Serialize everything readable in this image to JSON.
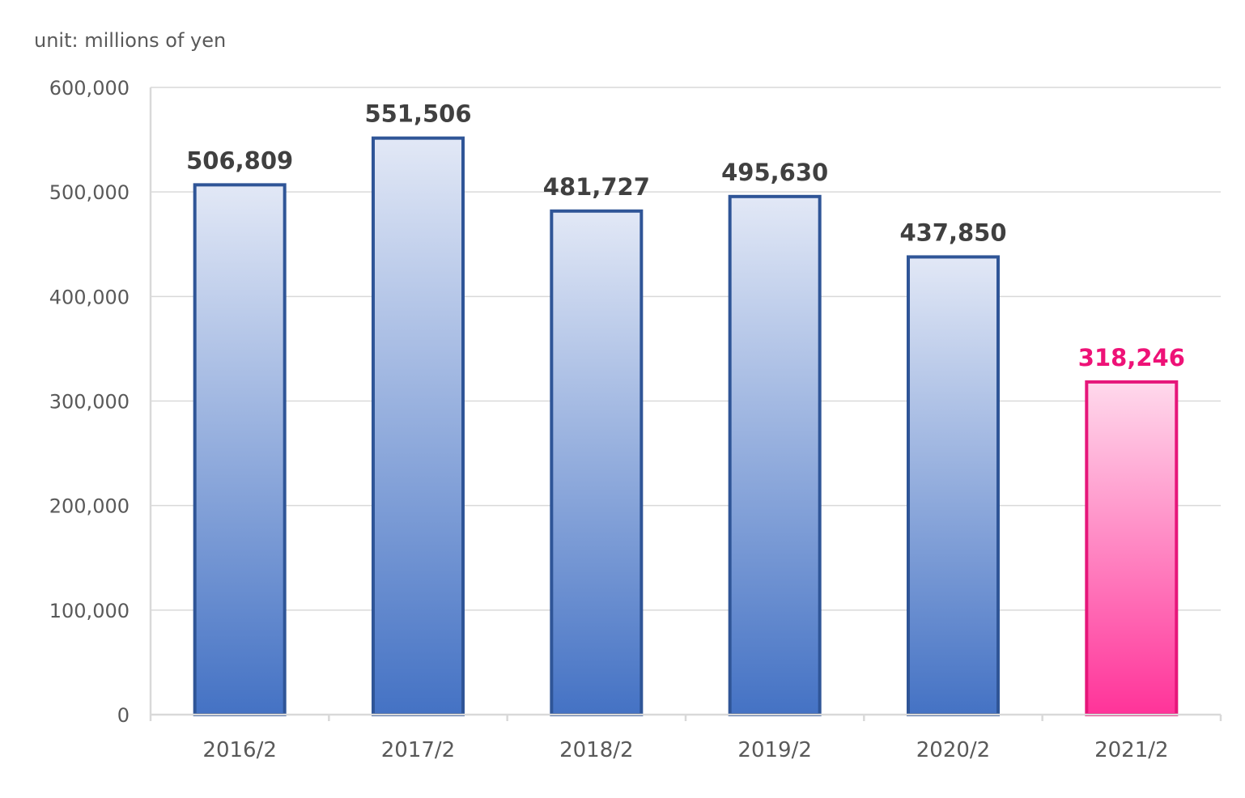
{
  "chart_data": {
    "type": "bar",
    "unit_label": "unit: millions of yen",
    "categories": [
      "2016/2",
      "2017/2",
      "2018/2",
      "2019/2",
      "2020/2",
      "2021/2"
    ],
    "values": [
      506809,
      551506,
      481727,
      495630,
      437850,
      318246
    ],
    "value_labels": [
      "506,809",
      "551,506",
      "481,727",
      "495,630",
      "437,850",
      "318,246"
    ],
    "ylim": [
      0,
      600000
    ],
    "yticks": [
      0,
      100000,
      200000,
      300000,
      400000,
      500000,
      600000
    ],
    "ytick_labels": [
      "0",
      "100,000",
      "200,000",
      "300,000",
      "400,000",
      "500,000",
      "600,000"
    ],
    "grid": true,
    "legend": "none",
    "colors": {
      "bar_top": "#e2e8f6",
      "bar_bottom": "#4472c4",
      "bar_stroke": "#2f5597",
      "highlight_top": "#ffd9ec",
      "highlight_bottom": "#ff3399",
      "highlight_stroke": "#e6167a",
      "label_text": "#404040",
      "highlight_label": "#ee1277",
      "grid": "#d9d9d9",
      "axis": "#d9d9d9",
      "tick_text": "#595959"
    },
    "highlight_index": 5
  }
}
